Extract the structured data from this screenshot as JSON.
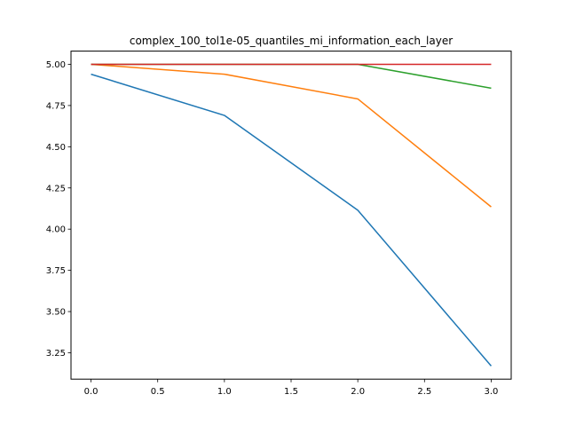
{
  "chart_data": {
    "type": "line",
    "title": "complex_100_tol1e-05_quantiles_mi_information_each_layer",
    "xlabel": "",
    "ylabel": "",
    "xlim": [
      -0.15,
      3.15
    ],
    "ylim": [
      3.09,
      5.08
    ],
    "grid": false,
    "legend": "none",
    "x": [
      0,
      1,
      2,
      3
    ],
    "xticks": [
      0.0,
      0.5,
      1.0,
      1.5,
      2.0,
      2.5,
      3.0
    ],
    "xtick_labels": [
      "0.0",
      "0.5",
      "1.0",
      "1.5",
      "2.0",
      "2.5",
      "3.0"
    ],
    "yticks": [
      3.25,
      3.5,
      3.75,
      4.0,
      4.25,
      4.5,
      4.75,
      5.0
    ],
    "ytick_labels": [
      "3.25",
      "3.50",
      "3.75",
      "4.00",
      "4.25",
      "4.50",
      "4.75",
      "5.00"
    ],
    "series": [
      {
        "color": "#1f77b4",
        "values": [
          4.94,
          4.69,
          4.115,
          3.17
        ]
      },
      {
        "color": "#ff7f0e",
        "values": [
          5.0,
          4.94,
          4.79,
          4.135
        ]
      },
      {
        "color": "#2ca02c",
        "values": [
          5.0,
          5.0,
          5.0,
          4.855
        ]
      },
      {
        "color": "#d62728",
        "values": [
          5.0,
          5.0,
          5.0,
          5.0
        ]
      }
    ]
  }
}
